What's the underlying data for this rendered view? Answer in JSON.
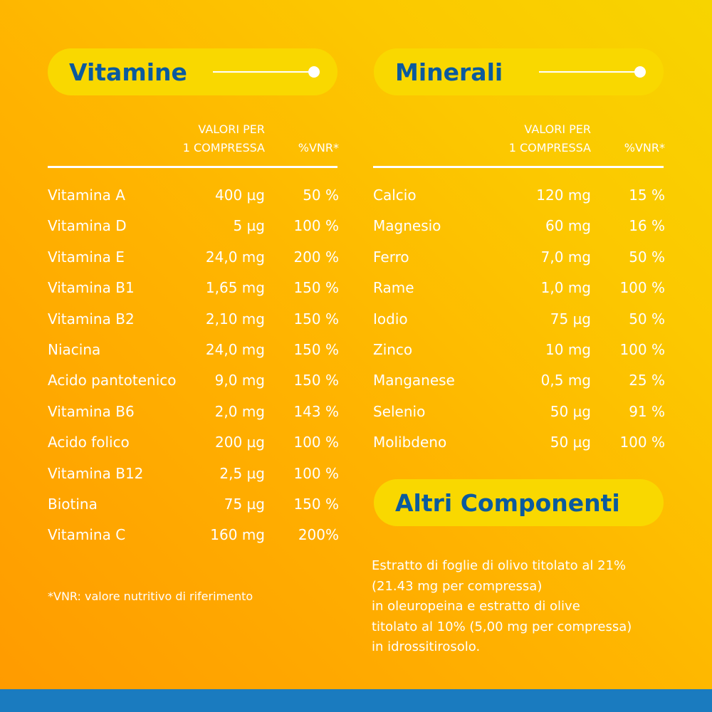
{
  "vitamins": {
    "title": "Vitamine",
    "header": [
      "VALORI PER",
      "1 COMPRESSA",
      "%VNR*"
    ],
    "rows": [
      [
        "Vitamina A",
        "400 µg",
        "50 %"
      ],
      [
        "Vitamina D",
        "5 µg",
        "100 %"
      ],
      [
        "Vitamina E",
        "24,0 mg",
        "200 %"
      ],
      [
        "Vitamina B1",
        "1,65 mg",
        "150 %"
      ],
      [
        "Vitamina B2",
        "2,10 mg",
        "150 %"
      ],
      [
        "Niacina",
        "24,0 mg",
        "150 %"
      ],
      [
        "Acido pantotenico",
        "9,0 mg",
        "150 %"
      ],
      [
        "Vitamina B6",
        "2,0 mg",
        "143 %"
      ],
      [
        "Acido folico",
        "200 µg",
        "100 %"
      ],
      [
        "Vitamina B12",
        "2,5 µg",
        "100 %"
      ],
      [
        "Biotina",
        "75 µg",
        "150 %"
      ],
      [
        "Vitamina C",
        "160 mg",
        "200%"
      ]
    ]
  },
  "minerals": {
    "title": "Minerali",
    "header": [
      "VALORI PER",
      "1 COMPRESSA",
      "%VNR*"
    ],
    "rows": [
      [
        "Calcio",
        "120 mg",
        "15 %"
      ],
      [
        "Magnesio",
        "60 mg",
        "16 %"
      ],
      [
        "Ferro",
        "7,0 mg",
        "50 %"
      ],
      [
        "Rame",
        "1,0 mg",
        "100 %"
      ],
      [
        "Iodio",
        "75 µg",
        "50 %"
      ],
      [
        "Zinco",
        "10 mg",
        "100 %"
      ],
      [
        "Manganese",
        "0,5 mg",
        "25 %"
      ],
      [
        "Selenio",
        "50 µg",
        "91 %"
      ],
      [
        "Molibdeno",
        "50 µg",
        "100 %"
      ]
    ]
  },
  "other": {
    "title": "Altri Componenti",
    "lines": [
      "Estratto di foglie di olivo titolato al 21%",
      "(21.43 mg per compressa)",
      "in oleuropeina e estratto di olive",
      "titolato al 10% (5,00 mg per compressa)",
      "in idrossitirosolo."
    ]
  },
  "footnote": "*VNR: valore nutritivo di riferimento"
}
